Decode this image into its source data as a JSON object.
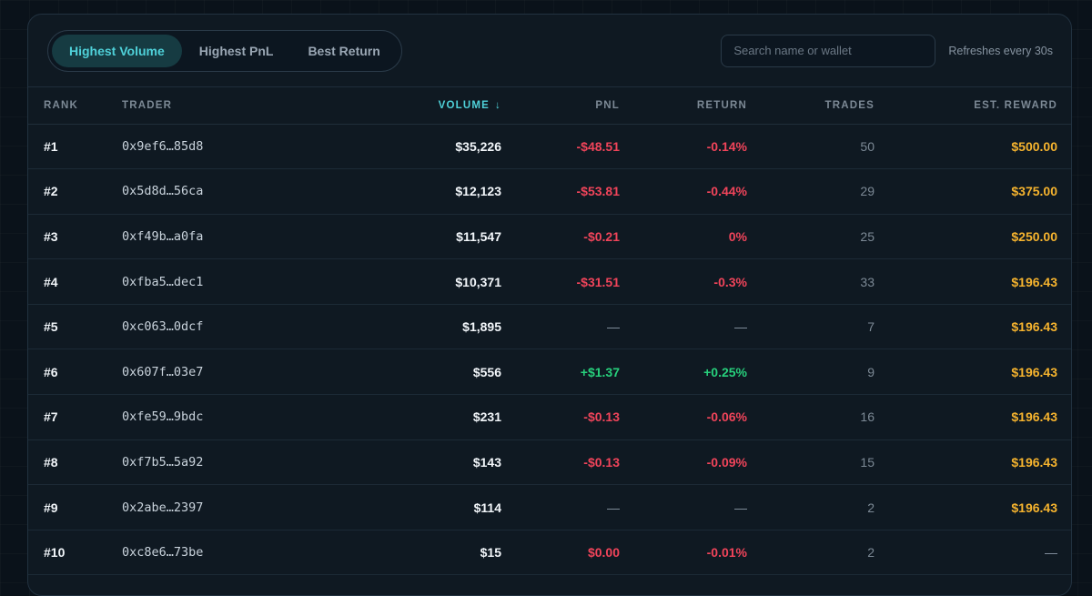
{
  "tabs": [
    {
      "label": "Highest Volume",
      "active": true
    },
    {
      "label": "Highest PnL",
      "active": false
    },
    {
      "label": "Best Return",
      "active": false
    }
  ],
  "search": {
    "placeholder": "Search name or wallet",
    "value": ""
  },
  "refresh_text": "Refreshes every 30s",
  "columns": {
    "rank": "RANK",
    "trader": "TRADER",
    "volume": "VOLUME",
    "sort_arrow": "↓",
    "pnl": "PNL",
    "return": "RETURN",
    "trades": "TRADES",
    "reward": "EST. REWARD"
  },
  "colors": {
    "accent": "#4fd1d9",
    "negative": "#f0445a",
    "positive": "#27d07c",
    "reward": "#f5b32e"
  },
  "rows": [
    {
      "rank": "#1",
      "trader": "0x9ef6…85d8",
      "volume": "$35,226",
      "pnl": "-$48.51",
      "pnl_tone": "neg",
      "return": "-0.14%",
      "return_tone": "neg",
      "trades": "50",
      "reward": "$500.00",
      "reward_tone": "gold"
    },
    {
      "rank": "#2",
      "trader": "0x5d8d…56ca",
      "volume": "$12,123",
      "pnl": "-$53.81",
      "pnl_tone": "neg",
      "return": "-0.44%",
      "return_tone": "neg",
      "trades": "29",
      "reward": "$375.00",
      "reward_tone": "gold"
    },
    {
      "rank": "#3",
      "trader": "0xf49b…a0fa",
      "volume": "$11,547",
      "pnl": "-$0.21",
      "pnl_tone": "neg",
      "return": "0%",
      "return_tone": "neg",
      "trades": "25",
      "reward": "$250.00",
      "reward_tone": "gold"
    },
    {
      "rank": "#4",
      "trader": "0xfba5…dec1",
      "volume": "$10,371",
      "pnl": "-$31.51",
      "pnl_tone": "neg",
      "return": "-0.3%",
      "return_tone": "neg",
      "trades": "33",
      "reward": "$196.43",
      "reward_tone": "gold"
    },
    {
      "rank": "#5",
      "trader": "0xc063…0dcf",
      "volume": "$1,895",
      "pnl": "—",
      "pnl_tone": "neutral",
      "return": "—",
      "return_tone": "neutral",
      "trades": "7",
      "reward": "$196.43",
      "reward_tone": "gold"
    },
    {
      "rank": "#6",
      "trader": "0x607f…03e7",
      "volume": "$556",
      "pnl": "+$1.37",
      "pnl_tone": "pos",
      "return": "+0.25%",
      "return_tone": "pos",
      "trades": "9",
      "reward": "$196.43",
      "reward_tone": "gold"
    },
    {
      "rank": "#7",
      "trader": "0xfe59…9bdc",
      "volume": "$231",
      "pnl": "-$0.13",
      "pnl_tone": "neg",
      "return": "-0.06%",
      "return_tone": "neg",
      "trades": "16",
      "reward": "$196.43",
      "reward_tone": "gold"
    },
    {
      "rank": "#8",
      "trader": "0xf7b5…5a92",
      "volume": "$143",
      "pnl": "-$0.13",
      "pnl_tone": "neg",
      "return": "-0.09%",
      "return_tone": "neg",
      "trades": "15",
      "reward": "$196.43",
      "reward_tone": "gold"
    },
    {
      "rank": "#9",
      "trader": "0x2abe…2397",
      "volume": "$114",
      "pnl": "—",
      "pnl_tone": "neutral",
      "return": "—",
      "return_tone": "neutral",
      "trades": "2",
      "reward": "$196.43",
      "reward_tone": "gold"
    },
    {
      "rank": "#10",
      "trader": "0xc8e6…73be",
      "volume": "$15",
      "pnl": "$0.00",
      "pnl_tone": "neg",
      "return": "-0.01%",
      "return_tone": "neg",
      "trades": "2",
      "reward": "—",
      "reward_tone": "muted-reward"
    }
  ]
}
